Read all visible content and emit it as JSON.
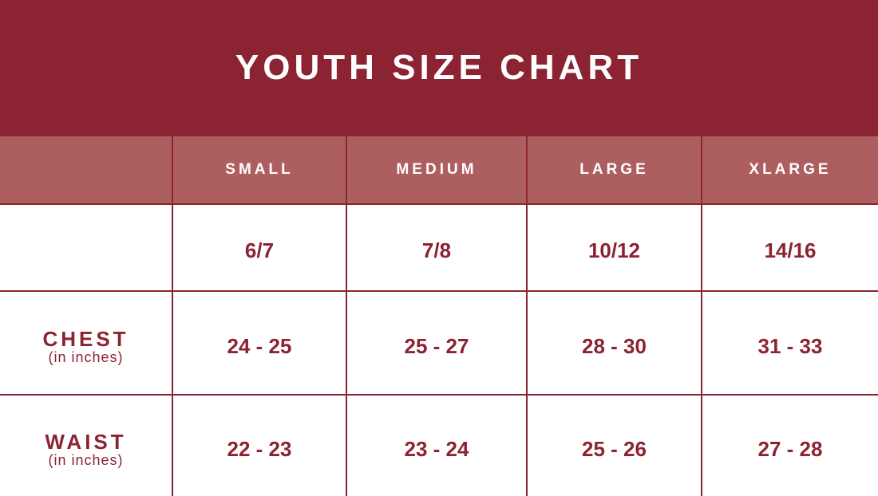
{
  "title": "YOUTH SIZE CHART",
  "colors": {
    "title_band": "#8B2332",
    "header_row": "#AD5F60",
    "text": "#8B2332"
  },
  "columns": [
    "",
    "SMALL",
    "MEDIUM",
    "LARGE",
    "XLARGE"
  ],
  "rows": [
    {
      "label": "",
      "sublabel": "",
      "values": [
        "6/7",
        "7/8",
        "10/12",
        "14/16"
      ]
    },
    {
      "label": "CHEST",
      "sublabel": "(in inches)",
      "values": [
        "24 - 25",
        "25 - 27",
        "28 - 30",
        "31 - 33"
      ]
    },
    {
      "label": "WAIST",
      "sublabel": "(in inches)",
      "values": [
        "22 - 23",
        "23 - 24",
        "25 - 26",
        "27 - 28"
      ]
    }
  ]
}
